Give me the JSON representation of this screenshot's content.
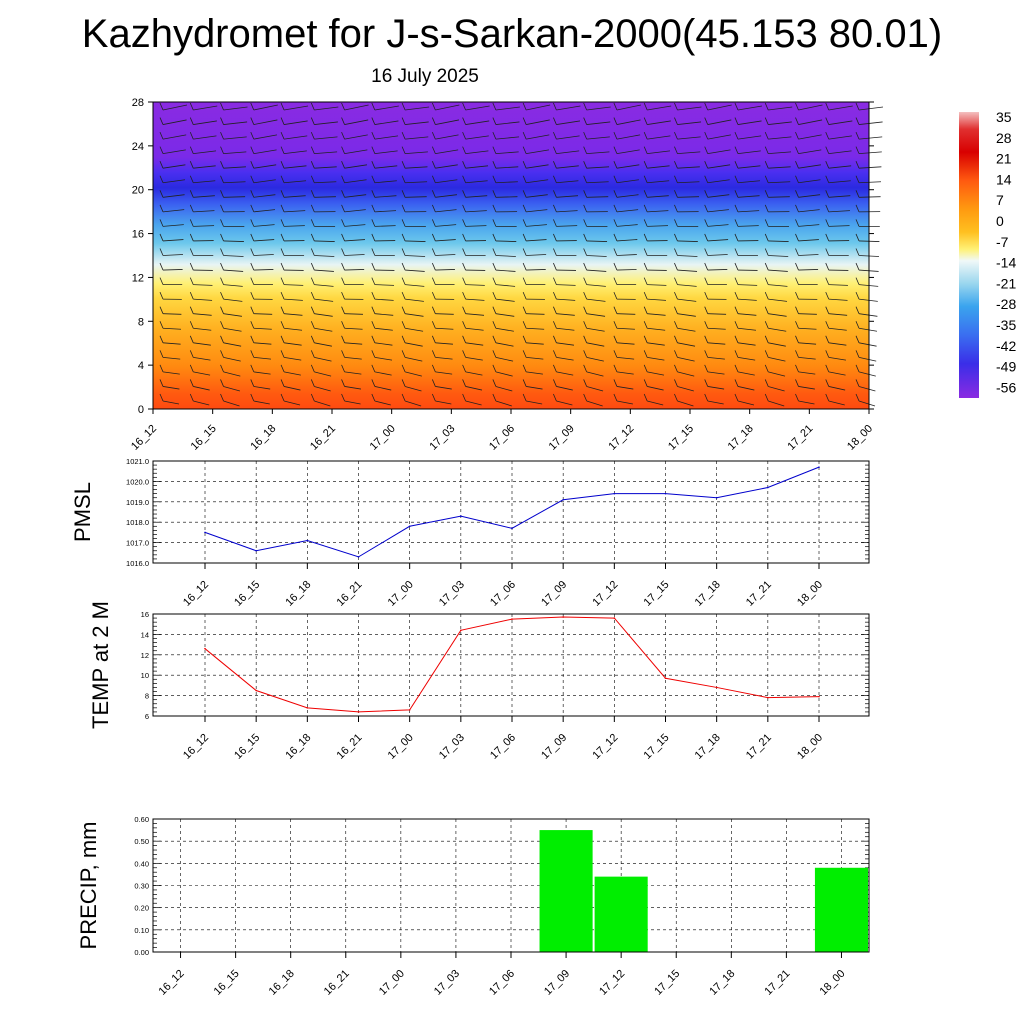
{
  "title": "Kazhydromet for J-s-Sarkan-2000(45.153 80.01)",
  "subtitle": "16 July 2025",
  "colors": {
    "pmsl_line": "#0000cc",
    "temp_line": "#ee0000",
    "precip_bar": "#00ee00",
    "grid": "#000000"
  },
  "chart_data": [
    {
      "type": "heatmap",
      "description_ref": "temperature-wind cross section",
      "x_ticks": [
        "16_12",
        "16_15",
        "16_18",
        "16_21",
        "17_00",
        "17_03",
        "17_06",
        "17_09",
        "17_12",
        "17_15",
        "17_18",
        "17_21",
        "18_00"
      ],
      "y_ticks": [
        "0",
        "4",
        "8",
        "12",
        "16",
        "20",
        "24",
        "28"
      ],
      "ylim": [
        0,
        28
      ],
      "colorbar_labels": [
        "35",
        "28",
        "21",
        "14",
        "7",
        "0",
        "-7",
        "-14",
        "-21",
        "-28",
        "-35",
        "-42",
        "-49",
        "-56"
      ]
    },
    {
      "type": "line",
      "ylabel": "PMSL",
      "x": [
        "16_12",
        "16_15",
        "16_18",
        "16_21",
        "17_00",
        "17_03",
        "17_06",
        "17_09",
        "17_12",
        "17_15",
        "17_18",
        "17_21",
        "18_00"
      ],
      "values": [
        1017.5,
        1016.6,
        1017.1,
        1016.3,
        1017.8,
        1018.3,
        1017.7,
        1019.1,
        1019.4,
        1019.4,
        1019.2,
        1019.7,
        1020.7
      ],
      "ylim": [
        1016.0,
        1021.0
      ],
      "y_ticks": [
        "1016.0",
        "1017.0",
        "1018.0",
        "1019.0",
        "1020.0",
        "1021.0"
      ],
      "grid": true
    },
    {
      "type": "line",
      "ylabel": "TEMP at 2 M",
      "x": [
        "16_12",
        "16_15",
        "16_18",
        "16_21",
        "17_00",
        "17_03",
        "17_06",
        "17_09",
        "17_12",
        "17_15",
        "17_18",
        "17_21",
        "18_00"
      ],
      "values": [
        12.6,
        8.5,
        6.8,
        6.4,
        6.6,
        14.4,
        15.5,
        15.7,
        15.6,
        9.7,
        8.8,
        7.8,
        7.9
      ],
      "ylim": [
        6,
        16
      ],
      "y_ticks": [
        "6",
        "8",
        "10",
        "12",
        "14",
        "16"
      ],
      "grid": true
    },
    {
      "type": "bar",
      "ylabel": "PRECIP, mm",
      "categories": [
        "16_12",
        "16_15",
        "16_18",
        "16_21",
        "17_00",
        "17_03",
        "17_06",
        "17_09",
        "17_12",
        "17_15",
        "17_18",
        "17_21",
        "18_00"
      ],
      "values": [
        0,
        0,
        0,
        0,
        0,
        0,
        0,
        0.55,
        0.34,
        0,
        0,
        0,
        0.38
      ],
      "ylim": [
        0,
        0.6
      ],
      "y_ticks": [
        "0.00",
        "0.10",
        "0.20",
        "0.30",
        "0.40",
        "0.50",
        "0.60"
      ],
      "grid": true
    }
  ]
}
